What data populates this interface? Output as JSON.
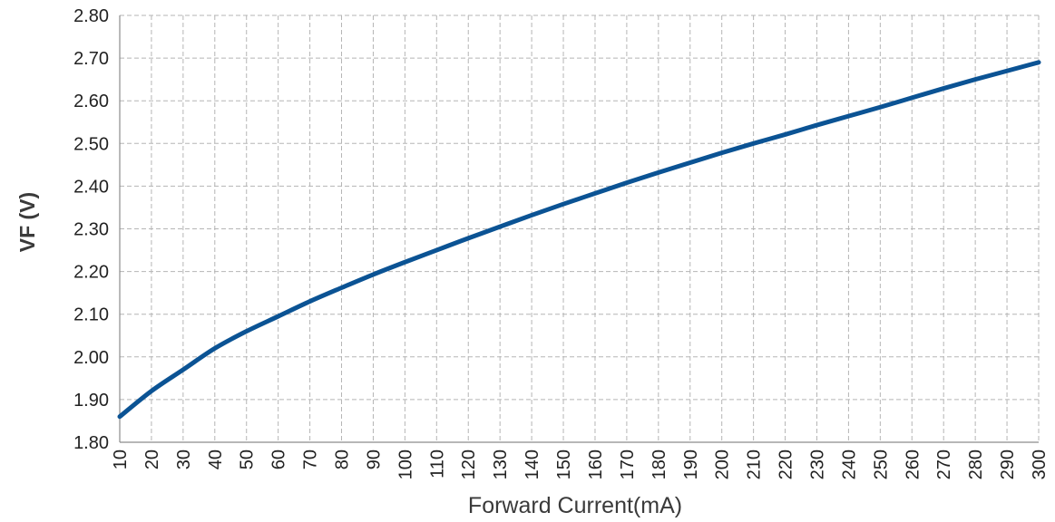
{
  "chart_data": {
    "type": "line",
    "title": "",
    "xlabel": "Forward Current(mA)",
    "ylabel": "VF (V)",
    "xlim": [
      10,
      300
    ],
    "ylim": [
      1.8,
      2.8
    ],
    "grid": true,
    "x_ticks": [
      10,
      20,
      30,
      40,
      50,
      60,
      70,
      80,
      90,
      100,
      110,
      120,
      130,
      140,
      150,
      160,
      170,
      180,
      190,
      200,
      210,
      220,
      230,
      240,
      250,
      260,
      270,
      280,
      290,
      300
    ],
    "y_ticks": [
      "1.80",
      "1.90",
      "2.00",
      "2.10",
      "2.20",
      "2.30",
      "2.40",
      "2.50",
      "2.60",
      "2.70",
      "2.80"
    ],
    "series": [
      {
        "color": "#0b5394",
        "x": [
          10,
          20,
          30,
          40,
          50,
          60,
          70,
          80,
          90,
          100,
          110,
          120,
          130,
          140,
          150,
          160,
          170,
          180,
          190,
          200,
          210,
          220,
          230,
          240,
          250,
          260,
          270,
          280,
          290,
          300
        ],
        "y": [
          1.86,
          1.92,
          1.97,
          2.02,
          2.06,
          2.095,
          2.13,
          2.162,
          2.193,
          2.222,
          2.25,
          2.278,
          2.305,
          2.332,
          2.358,
          2.383,
          2.408,
          2.432,
          2.455,
          2.478,
          2.5,
          2.521,
          2.543,
          2.564,
          2.585,
          2.607,
          2.629,
          2.65,
          2.67,
          2.69
        ]
      }
    ]
  }
}
